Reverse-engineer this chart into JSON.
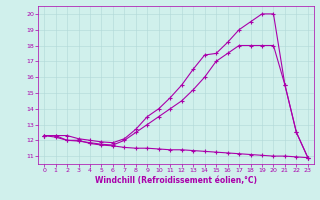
{
  "line1_x": [
    0,
    1,
    2,
    3,
    4,
    5,
    6,
    7,
    8,
    9,
    10,
    11,
    12,
    13,
    14,
    15,
    16,
    17,
    18,
    19,
    20,
    21,
    22,
    23
  ],
  "line1_y": [
    12.3,
    12.2,
    12.0,
    12.0,
    11.8,
    11.7,
    11.65,
    11.55,
    11.5,
    11.5,
    11.45,
    11.4,
    11.4,
    11.35,
    11.3,
    11.25,
    11.2,
    11.15,
    11.1,
    11.05,
    11.0,
    11.0,
    10.95,
    10.9
  ],
  "line2_x": [
    0,
    1,
    2,
    3,
    4,
    5,
    6,
    7,
    8,
    9,
    10,
    11,
    12,
    13,
    14,
    15,
    16,
    17,
    18,
    19,
    20,
    21,
    22,
    23
  ],
  "line2_y": [
    12.3,
    12.3,
    12.0,
    11.95,
    11.85,
    11.75,
    11.7,
    12.0,
    12.5,
    13.0,
    13.5,
    14.0,
    14.5,
    15.2,
    16.0,
    17.0,
    17.5,
    18.0,
    18.0,
    18.0,
    18.0,
    15.5,
    12.5,
    10.9
  ],
  "line3_x": [
    0,
    1,
    2,
    3,
    4,
    5,
    6,
    7,
    8,
    9,
    10,
    11,
    12,
    13,
    14,
    15,
    16,
    17,
    18,
    19,
    20,
    21,
    22,
    23
  ],
  "line3_y": [
    12.3,
    12.3,
    12.3,
    12.1,
    12.0,
    11.9,
    11.85,
    12.1,
    12.7,
    13.5,
    14.0,
    14.7,
    15.5,
    16.5,
    17.4,
    17.5,
    18.2,
    19.0,
    19.5,
    20.0,
    20.0,
    15.5,
    12.5,
    10.9
  ],
  "color": "#aa00aa",
  "bg_color": "#d0f0ec",
  "xlabel": "Windchill (Refroidissement éolien,°C)",
  "xlim": [
    -0.5,
    23.5
  ],
  "ylim": [
    10.5,
    20.5
  ],
  "yticks": [
    11,
    12,
    13,
    14,
    15,
    16,
    17,
    18,
    19,
    20
  ],
  "xticks": [
    0,
    1,
    2,
    3,
    4,
    5,
    6,
    7,
    8,
    9,
    10,
    11,
    12,
    13,
    14,
    15,
    16,
    17,
    18,
    19,
    20,
    21,
    22,
    23
  ],
  "marker": "+",
  "markersize": 3,
  "linewidth": 0.8,
  "grid_color": "#b0d8d8"
}
